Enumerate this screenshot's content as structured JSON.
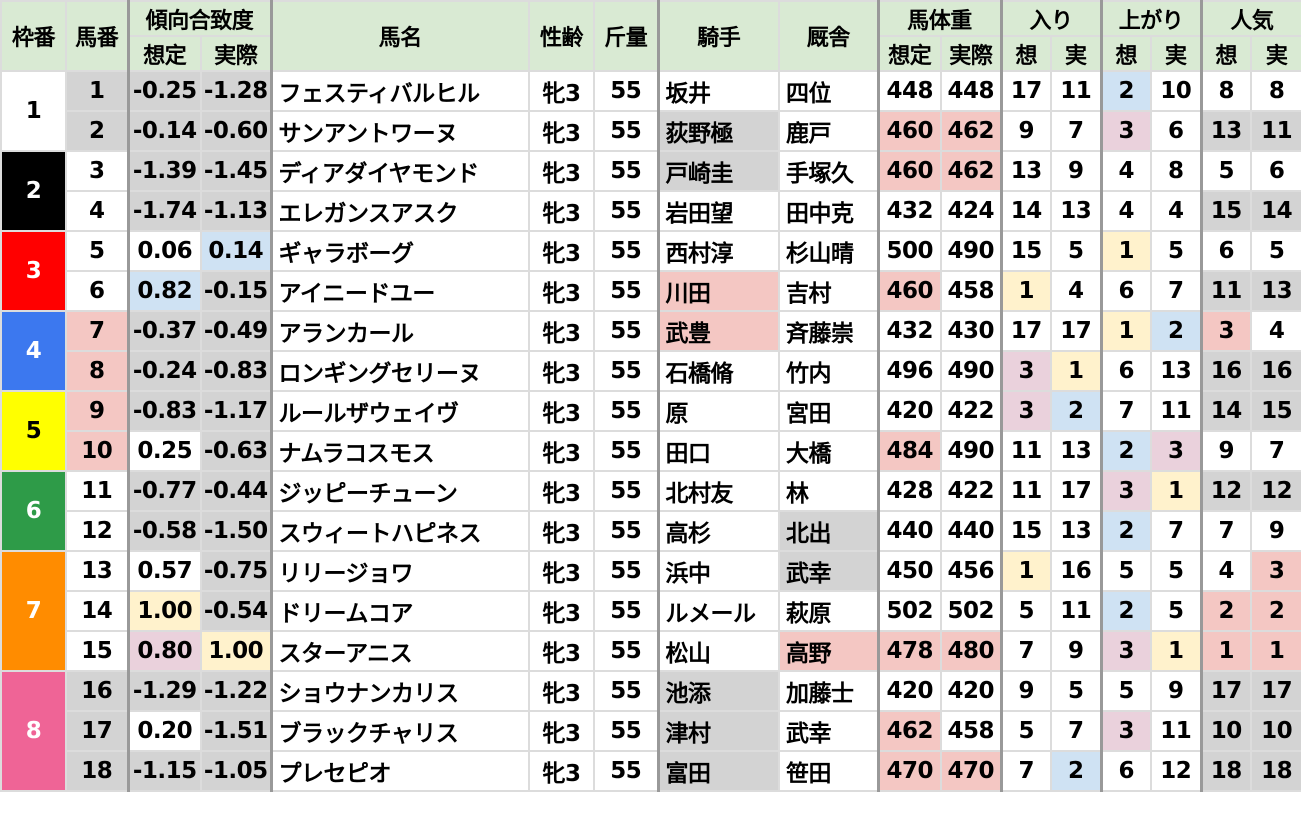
{
  "header": {
    "waku": "枠番",
    "umaban": "馬番",
    "keikou": "傾向合致度",
    "name": "馬名",
    "sexage": "性齢",
    "kinryo": "斤量",
    "jockey": "騎手",
    "trainer": "厩舎",
    "weight": "馬体重",
    "iri": "入り",
    "agari": "上がり",
    "ninki": "人気",
    "pred_long": "想定",
    "act_long": "実際",
    "pred_short": "想",
    "act_short": "実"
  },
  "cell_colors": {
    "g": "#d3d3d3",
    "p": "#f4c7c3",
    "b": "#cfe2f3",
    "y": "#fff2cc",
    "v": "#ead1dc"
  },
  "frames": [
    {
      "label": "1",
      "rows": 2,
      "bg": "#ffffff",
      "fg": "#000000"
    },
    {
      "label": "2",
      "rows": 2,
      "bg": "#000000",
      "fg": "#ffffff"
    },
    {
      "label": "3",
      "rows": 2,
      "bg": "#ff0000",
      "fg": "#ffffff"
    },
    {
      "label": "4",
      "rows": 2,
      "bg": "#3c78ef",
      "fg": "#ffffff"
    },
    {
      "label": "5",
      "rows": 2,
      "bg": "#ffff00",
      "fg": "#000000"
    },
    {
      "label": "6",
      "rows": 2,
      "bg": "#2e9b48",
      "fg": "#ffffff"
    },
    {
      "label": "7",
      "rows": 3,
      "bg": "#ff8c00",
      "fg": "#ffffff"
    },
    {
      "label": "8",
      "rows": 3,
      "bg": "#ef6496",
      "fg": "#ffffff"
    }
  ],
  "rows": [
    {
      "cells": [
        "1",
        "-0.25",
        "-1.28",
        "フェスティバルヒル",
        "牝3",
        "55",
        "坂井",
        "四位",
        "448",
        "448",
        "17",
        "11",
        "2",
        "10",
        "8",
        "8"
      ],
      "bg": [
        "g",
        "g",
        "g",
        "",
        "",
        "",
        "",
        "",
        "",
        "",
        "",
        "",
        "b",
        "",
        "",
        ""
      ]
    },
    {
      "cells": [
        "2",
        "-0.14",
        "-0.60",
        "サンアントワーヌ",
        "牝3",
        "55",
        "荻野極",
        "鹿戸",
        "460",
        "462",
        "9",
        "7",
        "3",
        "6",
        "13",
        "11"
      ],
      "bg": [
        "g",
        "g",
        "g",
        "",
        "",
        "",
        "g",
        "",
        "p",
        "p",
        "",
        "",
        "v",
        "",
        "g",
        "g"
      ]
    },
    {
      "cells": [
        "3",
        "-1.39",
        "-1.45",
        "ディアダイヤモンド",
        "牝3",
        "55",
        "戸崎圭",
        "手塚久",
        "460",
        "462",
        "13",
        "9",
        "4",
        "8",
        "5",
        "6"
      ],
      "bg": [
        "",
        "g",
        "g",
        "",
        "",
        "",
        "g",
        "",
        "p",
        "p",
        "",
        "",
        "",
        "",
        "",
        ""
      ]
    },
    {
      "cells": [
        "4",
        "-1.74",
        "-1.13",
        "エレガンスアスク",
        "牝3",
        "55",
        "岩田望",
        "田中克",
        "432",
        "424",
        "14",
        "13",
        "4",
        "4",
        "15",
        "14"
      ],
      "bg": [
        "",
        "g",
        "g",
        "",
        "",
        "",
        "",
        "",
        "",
        "",
        "",
        "",
        "",
        "",
        "g",
        "g"
      ]
    },
    {
      "cells": [
        "5",
        "0.06",
        "0.14",
        "ギャラボーグ",
        "牝3",
        "55",
        "西村淳",
        "杉山晴",
        "500",
        "490",
        "15",
        "5",
        "1",
        "5",
        "6",
        "5"
      ],
      "bg": [
        "",
        "",
        "b",
        "",
        "",
        "",
        "",
        "",
        "",
        "",
        "",
        "",
        "y",
        "",
        "",
        ""
      ]
    },
    {
      "cells": [
        "6",
        "0.82",
        "-0.15",
        "アイニードユー",
        "牝3",
        "55",
        "川田",
        "吉村",
        "460",
        "458",
        "1",
        "4",
        "6",
        "7",
        "11",
        "13"
      ],
      "bg": [
        "",
        "b",
        "g",
        "",
        "",
        "",
        "p",
        "",
        "p",
        "",
        "y",
        "",
        "",
        "",
        "g",
        "g"
      ]
    },
    {
      "cells": [
        "7",
        "-0.37",
        "-0.49",
        "アランカール",
        "牝3",
        "55",
        "武豊",
        "斉藤崇",
        "432",
        "430",
        "17",
        "17",
        "1",
        "2",
        "3",
        "4"
      ],
      "bg": [
        "p",
        "g",
        "g",
        "",
        "",
        "",
        "p",
        "",
        "",
        "",
        "",
        "",
        "y",
        "b",
        "p",
        ""
      ]
    },
    {
      "cells": [
        "8",
        "-0.24",
        "-0.83",
        "ロンギングセリーヌ",
        "牝3",
        "55",
        "石橋脩",
        "竹内",
        "496",
        "490",
        "3",
        "1",
        "6",
        "13",
        "16",
        "16"
      ],
      "bg": [
        "p",
        "g",
        "g",
        "",
        "",
        "",
        "",
        "",
        "",
        "",
        "v",
        "y",
        "",
        "",
        "g",
        "g"
      ]
    },
    {
      "cells": [
        "9",
        "-0.83",
        "-1.17",
        "ルールザウェイヴ",
        "牝3",
        "55",
        "原",
        "宮田",
        "420",
        "422",
        "3",
        "2",
        "7",
        "11",
        "14",
        "15"
      ],
      "bg": [
        "p",
        "g",
        "g",
        "",
        "",
        "",
        "",
        "",
        "",
        "",
        "v",
        "b",
        "",
        "",
        "g",
        "g"
      ]
    },
    {
      "cells": [
        "10",
        "0.25",
        "-0.63",
        "ナムラコスモス",
        "牝3",
        "55",
        "田口",
        "大橋",
        "484",
        "490",
        "11",
        "13",
        "2",
        "3",
        "9",
        "7"
      ],
      "bg": [
        "p",
        "",
        "g",
        "",
        "",
        "",
        "",
        "",
        "p",
        "",
        "",
        "",
        "b",
        "v",
        "",
        ""
      ]
    },
    {
      "cells": [
        "11",
        "-0.77",
        "-0.44",
        "ジッピーチューン",
        "牝3",
        "55",
        "北村友",
        "林",
        "428",
        "422",
        "11",
        "17",
        "3",
        "1",
        "12",
        "12"
      ],
      "bg": [
        "",
        "g",
        "g",
        "",
        "",
        "",
        "",
        "",
        "",
        "",
        "",
        "",
        "v",
        "y",
        "g",
        "g"
      ]
    },
    {
      "cells": [
        "12",
        "-0.58",
        "-1.50",
        "スウィートハピネス",
        "牝3",
        "55",
        "高杉",
        "北出",
        "440",
        "440",
        "15",
        "13",
        "2",
        "7",
        "7",
        "9"
      ],
      "bg": [
        "",
        "g",
        "g",
        "",
        "",
        "",
        "",
        "g",
        "",
        "",
        "",
        "",
        "b",
        "",
        "",
        ""
      ]
    },
    {
      "cells": [
        "13",
        "0.57",
        "-0.75",
        "リリージョワ",
        "牝3",
        "55",
        "浜中",
        "武幸",
        "450",
        "456",
        "1",
        "16",
        "5",
        "5",
        "4",
        "3"
      ],
      "bg": [
        "",
        "",
        "g",
        "",
        "",
        "",
        "",
        "g",
        "",
        "",
        "y",
        "",
        "",
        "",
        "",
        "p"
      ]
    },
    {
      "cells": [
        "14",
        "1.00",
        "-0.54",
        "ドリームコア",
        "牝3",
        "55",
        "ルメール",
        "萩原",
        "502",
        "502",
        "5",
        "11",
        "2",
        "5",
        "2",
        "2"
      ],
      "bg": [
        "",
        "y",
        "g",
        "",
        "",
        "",
        "",
        "",
        "",
        "",
        "",
        "",
        "b",
        "",
        "p",
        "p"
      ]
    },
    {
      "cells": [
        "15",
        "0.80",
        "1.00",
        "スターアニス",
        "牝3",
        "55",
        "松山",
        "高野",
        "478",
        "480",
        "7",
        "9",
        "3",
        "1",
        "1",
        "1"
      ],
      "bg": [
        "",
        "v",
        "y",
        "",
        "",
        "",
        "",
        "p",
        "p",
        "p",
        "",
        "",
        "v",
        "y",
        "p",
        "p"
      ]
    },
    {
      "cells": [
        "16",
        "-1.29",
        "-1.22",
        "ショウナンカリス",
        "牝3",
        "55",
        "池添",
        "加藤士",
        "420",
        "420",
        "9",
        "5",
        "5",
        "9",
        "17",
        "17"
      ],
      "bg": [
        "g",
        "g",
        "g",
        "",
        "",
        "",
        "g",
        "",
        "",
        "",
        "",
        "",
        "",
        "",
        "g",
        "g"
      ]
    },
    {
      "cells": [
        "17",
        "0.20",
        "-1.51",
        "ブラックチャリス",
        "牝3",
        "55",
        "津村",
        "武幸",
        "462",
        "458",
        "5",
        "7",
        "3",
        "11",
        "10",
        "10"
      ],
      "bg": [
        "g",
        "",
        "g",
        "",
        "",
        "",
        "g",
        "",
        "p",
        "",
        "",
        "",
        "v",
        "",
        "g",
        "g"
      ]
    },
    {
      "cells": [
        "18",
        "-1.15",
        "-1.05",
        "プレセピオ",
        "牝3",
        "55",
        "富田",
        "笹田",
        "470",
        "470",
        "7",
        "2",
        "6",
        "12",
        "18",
        "18"
      ],
      "bg": [
        "g",
        "g",
        "g",
        "",
        "",
        "",
        "g",
        "",
        "p",
        "p",
        "",
        "b",
        "",
        "",
        "g",
        "g"
      ]
    }
  ]
}
